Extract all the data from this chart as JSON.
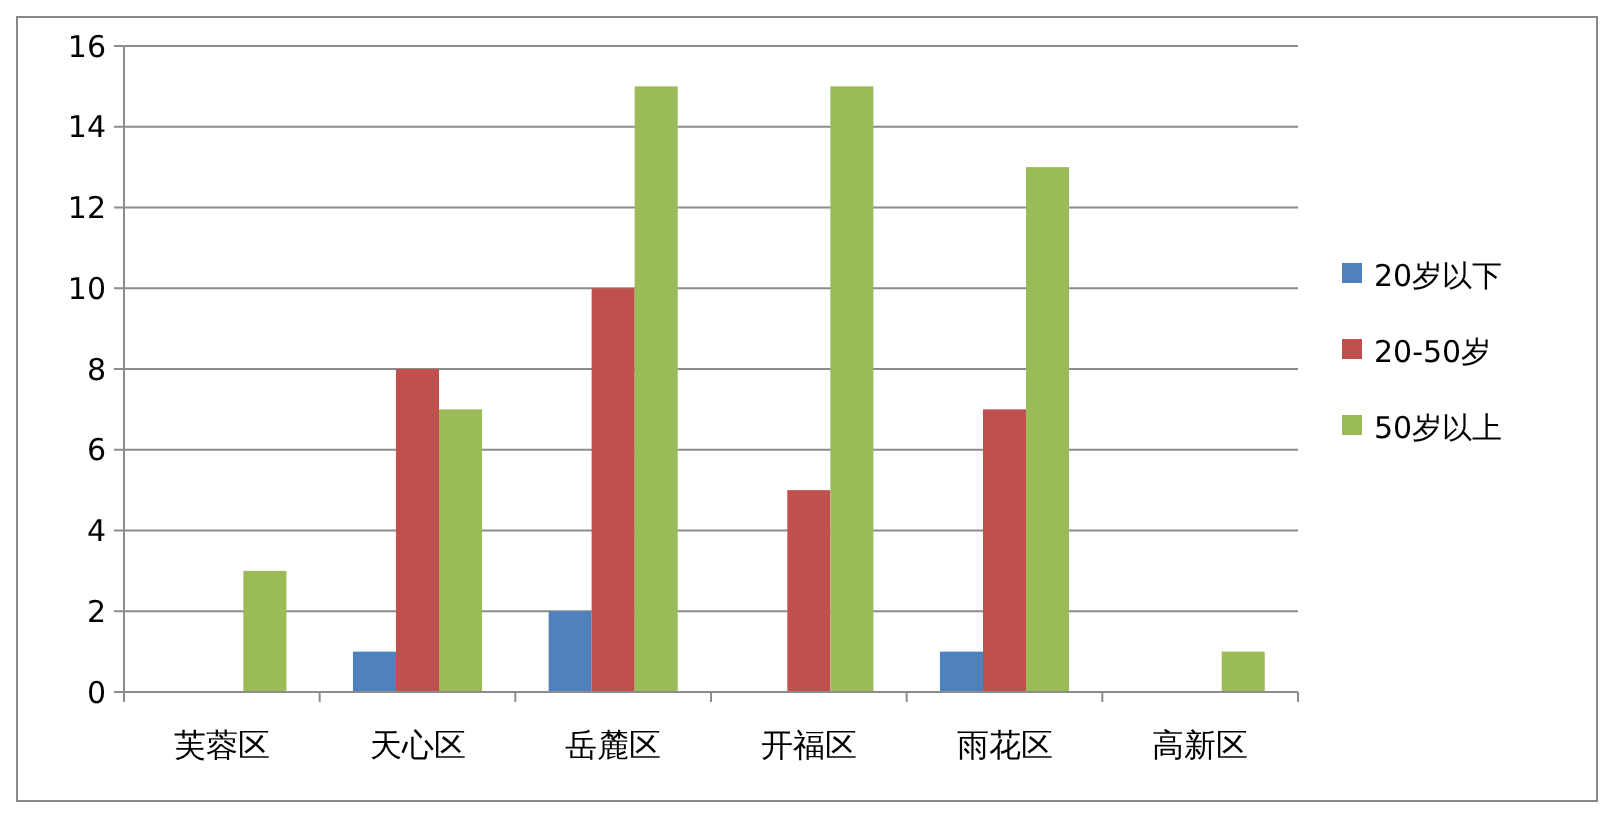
{
  "chart_data": {
    "type": "bar",
    "categories": [
      "芙蓉区",
      "天心区",
      "岳麓区",
      "开福区",
      "雨花区",
      "高新区"
    ],
    "series": [
      {
        "name": "20岁以下",
        "color": "#4f81bd",
        "values": [
          0,
          1,
          2,
          0,
          1,
          0
        ]
      },
      {
        "name": "20-50岁",
        "color": "#c0504d",
        "values": [
          0,
          8,
          10,
          5,
          7,
          0
        ]
      },
      {
        "name": "50岁以上",
        "color": "#9bbb59",
        "values": [
          3,
          7,
          15,
          15,
          13,
          1
        ]
      }
    ],
    "ylim": [
      0,
      16
    ],
    "yticks": [
      0,
      2,
      4,
      6,
      8,
      10,
      12,
      14,
      16
    ],
    "grid": "y",
    "legend": "right"
  }
}
